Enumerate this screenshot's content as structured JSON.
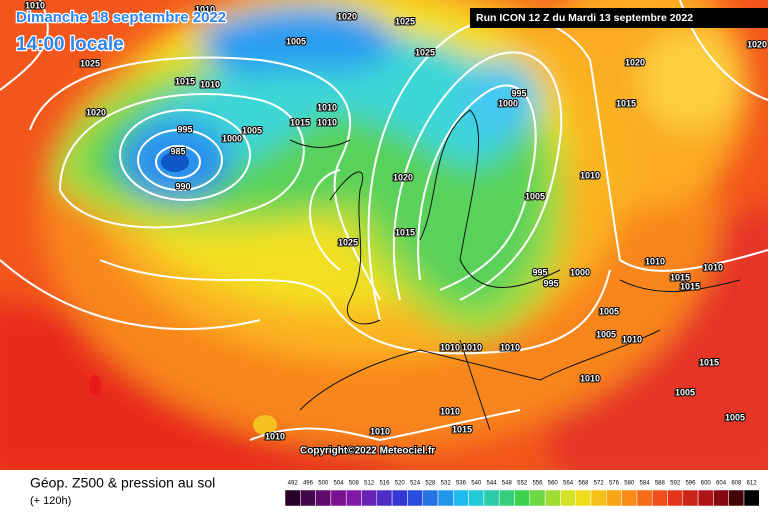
{
  "header": {
    "date": "Dimanche 18 septembre 2022",
    "time": "14:00 locale",
    "run": "Run ICON 12 Z du Mardi 13 septembre 2022"
  },
  "map": {
    "pressure_labels": [
      1010,
      1010,
      1020,
      1025,
      1005,
      1025,
      1025,
      1020,
      1015,
      1010,
      1020,
      995,
      1000,
      1005,
      1015,
      1010,
      1010,
      985,
      990,
      995,
      1000,
      1015,
      1020,
      1010,
      1005,
      1025,
      1015,
      995,
      995,
      1000,
      1005,
      1005,
      1010,
      1010,
      1010,
      1010,
      1010,
      1010,
      1010,
      1015,
      1015,
      1005,
      1010,
      1015,
      1010,
      1015,
      1020,
      1005,
      1010
    ]
  },
  "copyright": "Copyright©2022 Meteociel.fr",
  "footer": {
    "title": "Géop. Z500 & pression au sol",
    "lead": "(+ 120h)"
  },
  "legend": {
    "values": [
      492,
      496,
      500,
      504,
      508,
      512,
      516,
      520,
      524,
      528,
      532,
      536,
      540,
      544,
      548,
      552,
      556,
      560,
      564,
      568,
      572,
      576,
      580,
      584,
      588,
      592,
      596,
      600,
      604,
      608,
      612
    ]
  }
}
